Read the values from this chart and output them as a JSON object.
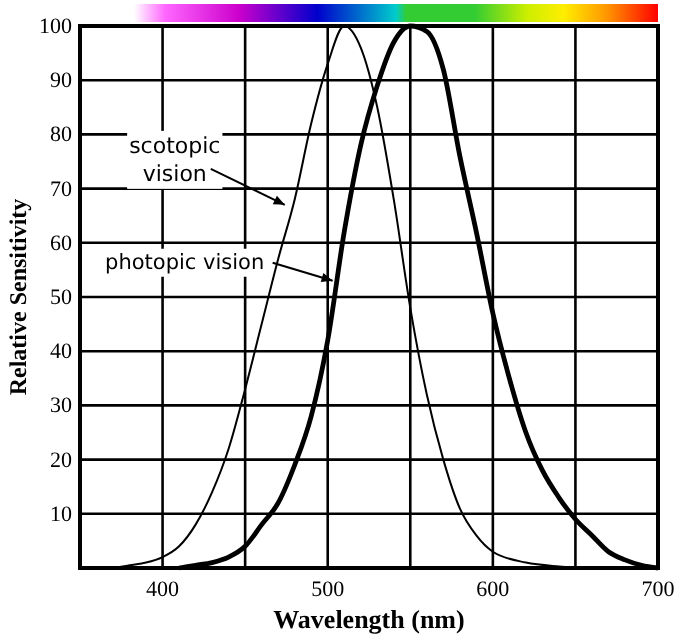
{
  "chart_data": {
    "type": "line",
    "xlabel": "Wavelength (nm)",
    "ylabel": "Relative Sensitivity",
    "xlim": [
      350,
      700
    ],
    "ylim": [
      0,
      100
    ],
    "xticks": [
      400,
      {
        "value": 450,
        "label": null
      },
      500,
      {
        "value": 550,
        "label": null
      },
      600,
      {
        "value": 650,
        "label": null
      },
      700
    ],
    "yticks": [
      10,
      20,
      30,
      40,
      50,
      60,
      70,
      80,
      90,
      100
    ],
    "grid": true,
    "marker": "none",
    "line_style": "solid",
    "series": [
      {
        "color": "#000000",
        "x": [
          370,
          380,
          390,
          400,
          410,
          420,
          430,
          440,
          450,
          460,
          470,
          480,
          490,
          500,
          510,
          520,
          530,
          540,
          550,
          560,
          570,
          580,
          590,
          600,
          620,
          640,
          660
        ],
        "values": [
          0,
          0.5,
          1,
          2,
          4,
          8,
          14,
          22,
          33,
          45,
          57,
          68,
          82,
          93,
          100,
          96,
          85,
          68,
          48,
          32,
          20,
          11,
          6,
          3,
          1,
          0.3,
          0
        ]
      },
      {
        "color": "#000000",
        "x": [
          410,
          420,
          430,
          440,
          450,
          460,
          470,
          480,
          490,
          500,
          510,
          520,
          530,
          540,
          550,
          560,
          570,
          580,
          590,
          600,
          610,
          620,
          630,
          640,
          650,
          660,
          670,
          680,
          690,
          700
        ],
        "values": [
          0,
          0.5,
          1,
          2,
          4,
          8,
          12,
          19,
          28,
          42,
          62,
          78,
          89,
          97,
          100,
          99,
          92,
          76,
          62,
          47,
          35,
          25,
          18,
          13,
          9,
          6,
          3,
          1.5,
          0.5,
          0
        ]
      }
    ],
    "annotations": [
      {
        "text": "scotopic vision",
        "x": 474,
        "y": 67
      },
      {
        "text": "photopic vision",
        "x": 503,
        "y": 53
      }
    ]
  }
}
